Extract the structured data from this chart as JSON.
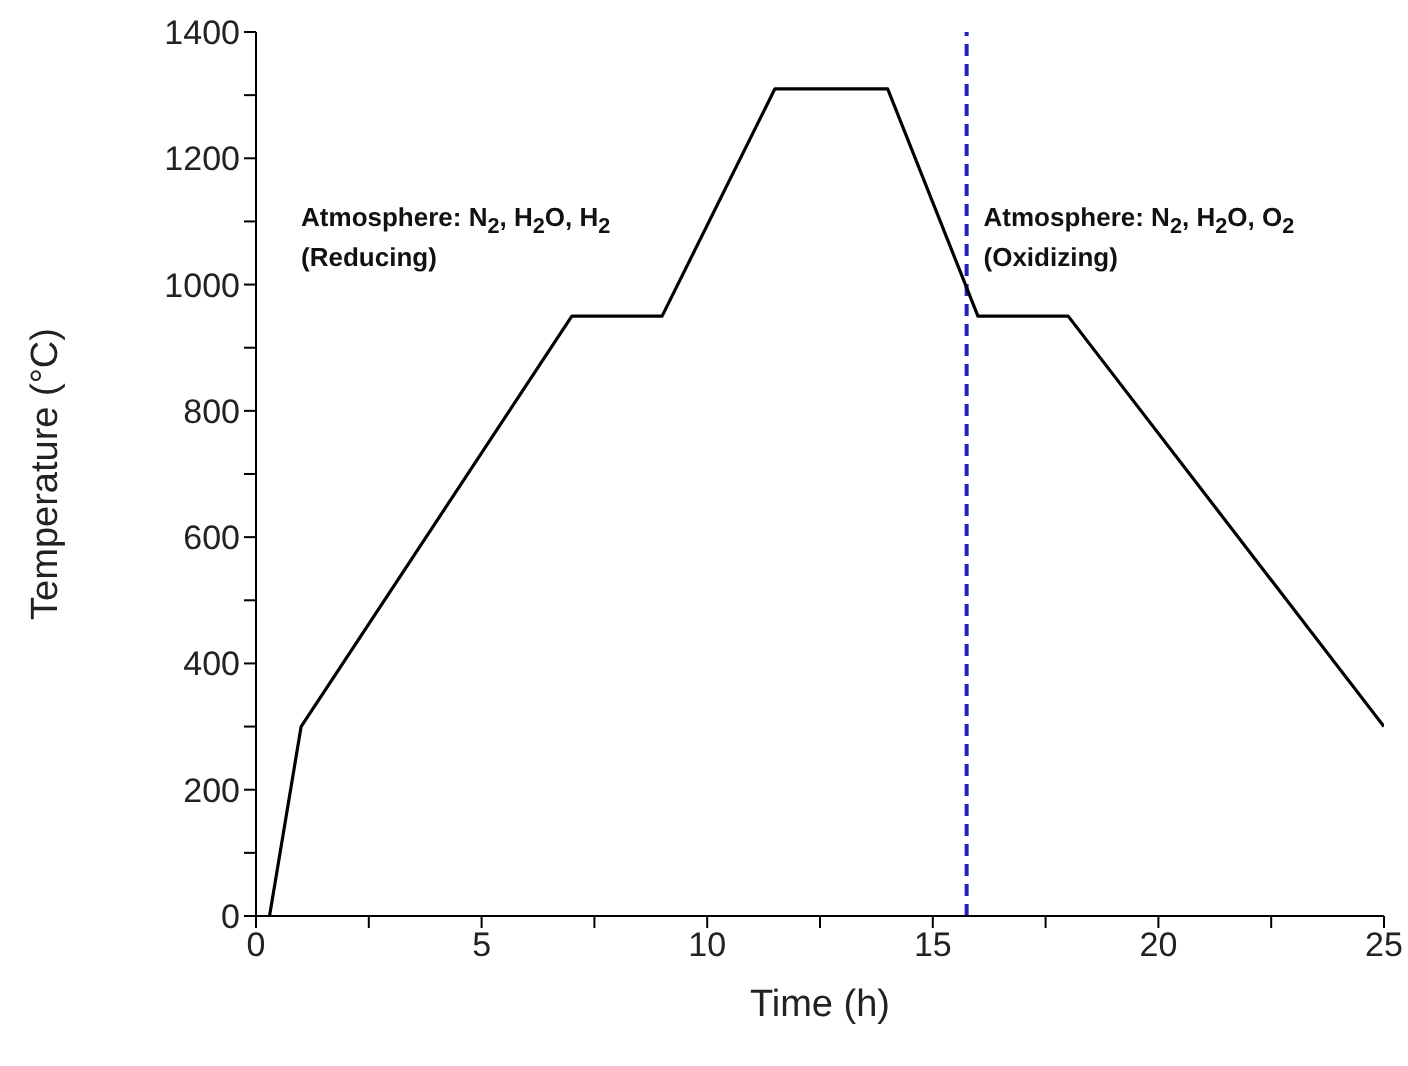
{
  "chart_data": {
    "type": "line",
    "xlabel": "Time (h)",
    "ylabel": "Temperature (°C)",
    "x": [
      0.3,
      1,
      7,
      9,
      11.5,
      14,
      16,
      18,
      25
    ],
    "series": [
      {
        "color": "#000000",
        "values": [
          0,
          300,
          950,
          950,
          1310,
          1310,
          950,
          950,
          300
        ]
      }
    ],
    "xlim": [
      0,
      25
    ],
    "xticks": [
      0,
      {
        "value": 2.5,
        "label": null
      },
      5,
      {
        "value": 7.5,
        "label": null
      },
      10,
      {
        "value": 12.5,
        "label": null
      },
      15,
      {
        "value": 17.5,
        "label": null
      },
      20,
      {
        "value": 22.5,
        "label": null
      },
      25
    ],
    "ylim": [
      0,
      1400
    ],
    "yticks": [
      0,
      {
        "value": 100,
        "label": null
      },
      200,
      {
        "value": 300,
        "label": null
      },
      400,
      {
        "value": 500,
        "label": null
      },
      600,
      {
        "value": 700,
        "label": null
      },
      800,
      {
        "value": 900,
        "label": null
      },
      1000,
      {
        "value": 1100,
        "label": null
      },
      1200,
      {
        "value": 1300,
        "label": null
      },
      1400
    ],
    "ref_lines": [
      {
        "axis": "x",
        "value": 15.75,
        "color": "#2222bb",
        "line_style": "dashed"
      }
    ],
    "annotations": [
      "Atmosphere: N$_{2}$, H$_{2}$O, H$_{2}$",
      "(Reducing)",
      "Atmosphere: N$_{2}$, H$_{2}$O, O$_{2}$",
      "(Oxidizing)"
    ],
    "grid": false,
    "legend": false,
    "marker": "none",
    "line_style": "solid"
  }
}
